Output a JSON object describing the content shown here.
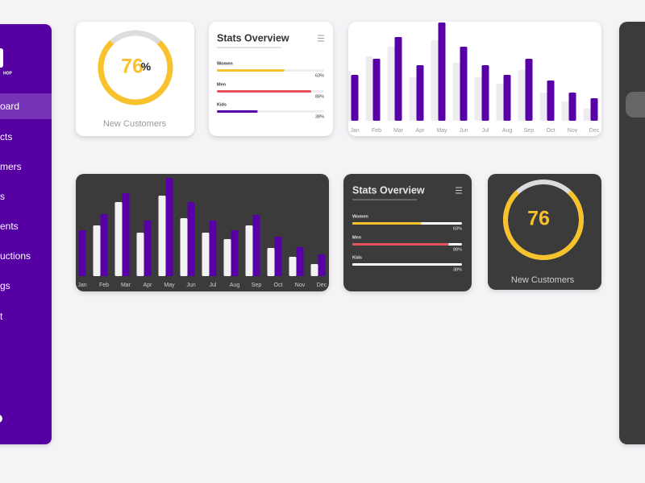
{
  "sidebar": {
    "logo": "HOP",
    "items": [
      "oard",
      "cts",
      "mers",
      "s",
      "ents",
      "uctions",
      "gs",
      "t"
    ]
  },
  "donut_cards": [
    {
      "theme": "light",
      "value": 76,
      "unit": "%",
      "label": "New Customers",
      "lim": [
        0,
        100
      ],
      "color": "#f8c22c",
      "track_color": "#dcdcdc"
    },
    {
      "theme": "dark",
      "value": 76,
      "label": "New Customers",
      "lim": [
        0,
        100
      ],
      "color": "#f8c22c",
      "track_color": "#dcdcdc"
    }
  ],
  "stats_cards": [
    {
      "theme": "light",
      "title": "Stats Overview",
      "xlim": [
        0,
        100
      ],
      "rows": [
        {
          "label": "Women",
          "value": 63,
          "value_label": "63%",
          "color": "#f8c22c"
        },
        {
          "label": "Men",
          "value": 88,
          "value_label": "88%",
          "color": "#e8505b"
        },
        {
          "label": "Kids",
          "value": 38,
          "value_label": "38%",
          "color": "#5800a8"
        }
      ]
    },
    {
      "theme": "dark",
      "title": "Stats Overview",
      "xlim": [
        0,
        100
      ],
      "rows": [
        {
          "label": "Women",
          "value": 63,
          "value_label": "63%",
          "color": "#f8c22c"
        },
        {
          "label": "Men",
          "value": 88,
          "value_label": "88%",
          "color": "#e8505b"
        },
        {
          "label": "Kids",
          "value": 38,
          "value_label": "38%",
          "color": "#ffffff"
        }
      ]
    }
  ],
  "chart_data": [
    {
      "type": "bar",
      "theme": "light",
      "categories": [
        "Jan",
        "Feb",
        "Mar",
        "Apr",
        "May",
        "Jun",
        "Jul",
        "Aug",
        "Sep",
        "Oct",
        "Nov",
        "Dec"
      ],
      "series": [
        {
          "color": "#ececf1",
          "values": [
            62,
            80,
            92,
            54,
            100,
            72,
            54,
            46,
            63,
            35,
            24,
            15
          ]
        },
        {
          "color": "#5800a8",
          "values": [
            57,
            77,
            104,
            69,
            122,
            92,
            69,
            57,
            77,
            50,
            35,
            28
          ]
        }
      ],
      "ylim": [
        0,
        130
      ]
    },
    {
      "type": "bar",
      "theme": "dark",
      "categories": [
        "Jan",
        "Feb",
        "Mar",
        "Apr",
        "May",
        "Jun",
        "Jul",
        "Aug",
        "Sep",
        "Oct",
        "Nov",
        "Dec"
      ],
      "series": [
        {
          "color": "#f2f2f2",
          "values": [
            null,
            63,
            92,
            54,
            100,
            72,
            54,
            46,
            63,
            35,
            24,
            15
          ]
        },
        {
          "color": "#5800a8",
          "values": [
            57,
            77,
            103,
            69,
            122,
            92,
            69,
            57,
            76,
            49,
            36,
            27
          ]
        }
      ],
      "ylim": [
        0,
        130
      ]
    }
  ]
}
